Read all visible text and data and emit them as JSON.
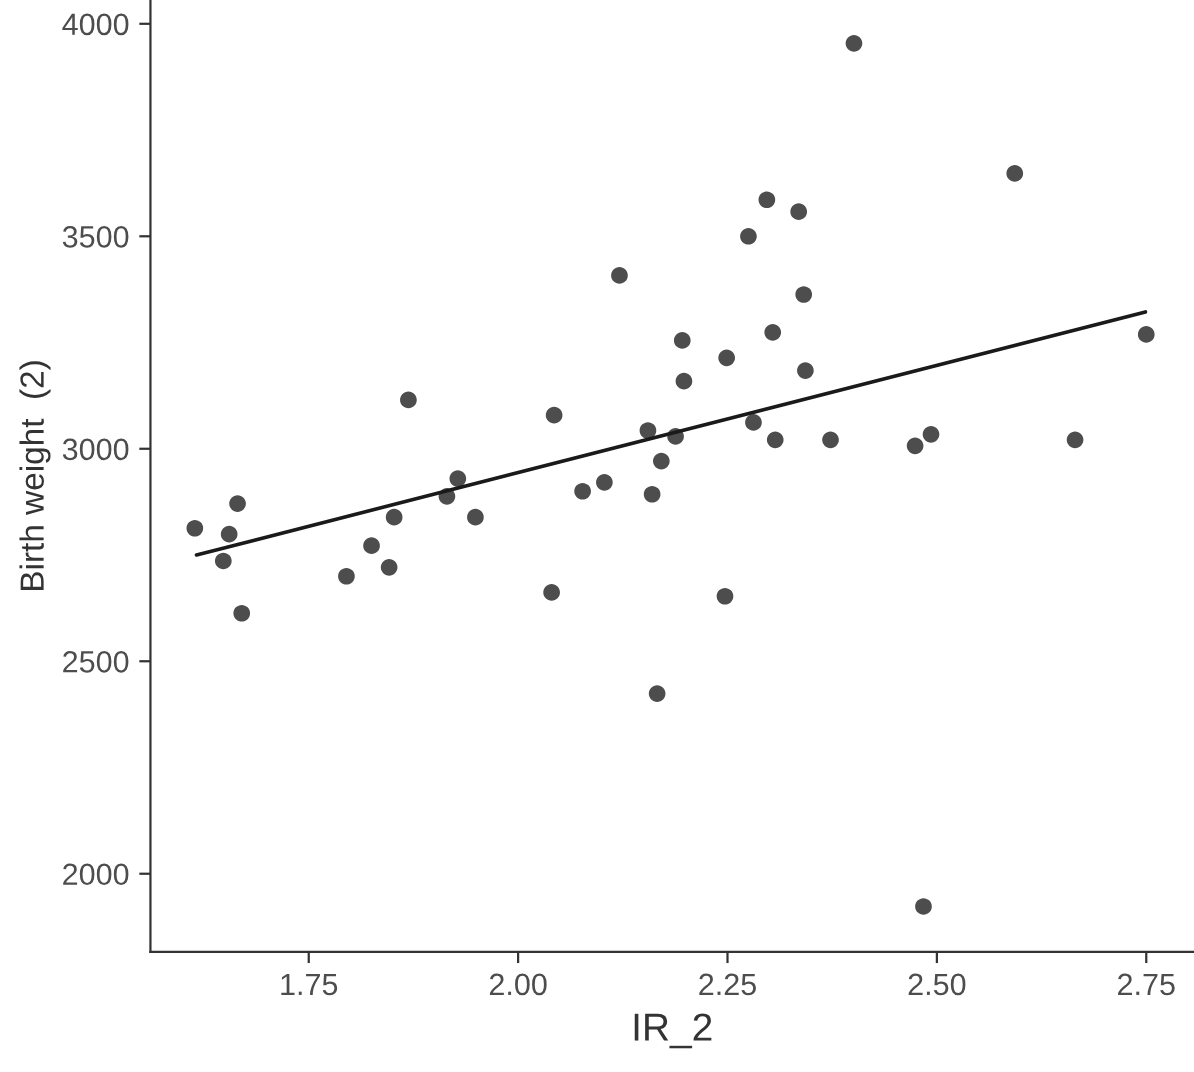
{
  "chart_data": {
    "type": "scatter",
    "xlabel": "IR_2",
    "ylabel": "Birth weight  (2)",
    "xlim": [
      1.561,
      2.807
    ],
    "ylim": [
      1816,
      4056
    ],
    "xticks": [
      {
        "value": 1.75,
        "label": "1.75"
      },
      {
        "value": 2.0,
        "label": "2.00"
      },
      {
        "value": 2.25,
        "label": "2.25"
      },
      {
        "value": 2.5,
        "label": "2.50"
      },
      {
        "value": 2.75,
        "label": "2.75"
      }
    ],
    "yticks": [
      2000,
      2500,
      3000,
      3500,
      4000
    ],
    "grid": false,
    "legend": false,
    "marker": "circle",
    "series": [
      {
        "color": "#4d4d4d",
        "x": [
          2.121,
          2.196,
          2.198,
          1.869,
          2.043,
          2.155,
          2.188,
          2.171,
          1.928,
          2.103,
          2.077,
          2.16,
          1.614,
          1.665,
          1.655,
          1.648,
          1.67,
          1.795,
          1.825,
          1.852,
          1.846,
          1.915,
          1.949,
          2.04,
          2.166,
          2.401,
          2.593,
          2.297,
          2.335,
          2.275,
          2.341,
          2.249,
          2.304,
          2.343,
          2.75,
          2.281,
          2.307,
          2.373,
          2.474,
          2.493,
          2.665,
          2.247,
          2.484
        ],
        "values": [
          3408,
          3255,
          3159,
          3115,
          3079,
          3043,
          3029,
          2971,
          2930,
          2921,
          2900,
          2893,
          2813,
          2871,
          2799,
          2736,
          2613,
          2700,
          2772,
          2839,
          2721,
          2888,
          2839,
          2662,
          2424,
          3954,
          3648,
          3586,
          3558,
          3500,
          3363,
          3214,
          3274,
          3184,
          3269,
          3062,
          3021,
          3021,
          3007,
          3034,
          3021,
          2653,
          1923
        ]
      },
      {
        "type": "line",
        "color": "#1a1a1a",
        "line_style": "solid",
        "marker": "none",
        "x": [
          1.616,
          2.749
        ],
        "values": [
          2750,
          3322
        ]
      }
    ]
  }
}
